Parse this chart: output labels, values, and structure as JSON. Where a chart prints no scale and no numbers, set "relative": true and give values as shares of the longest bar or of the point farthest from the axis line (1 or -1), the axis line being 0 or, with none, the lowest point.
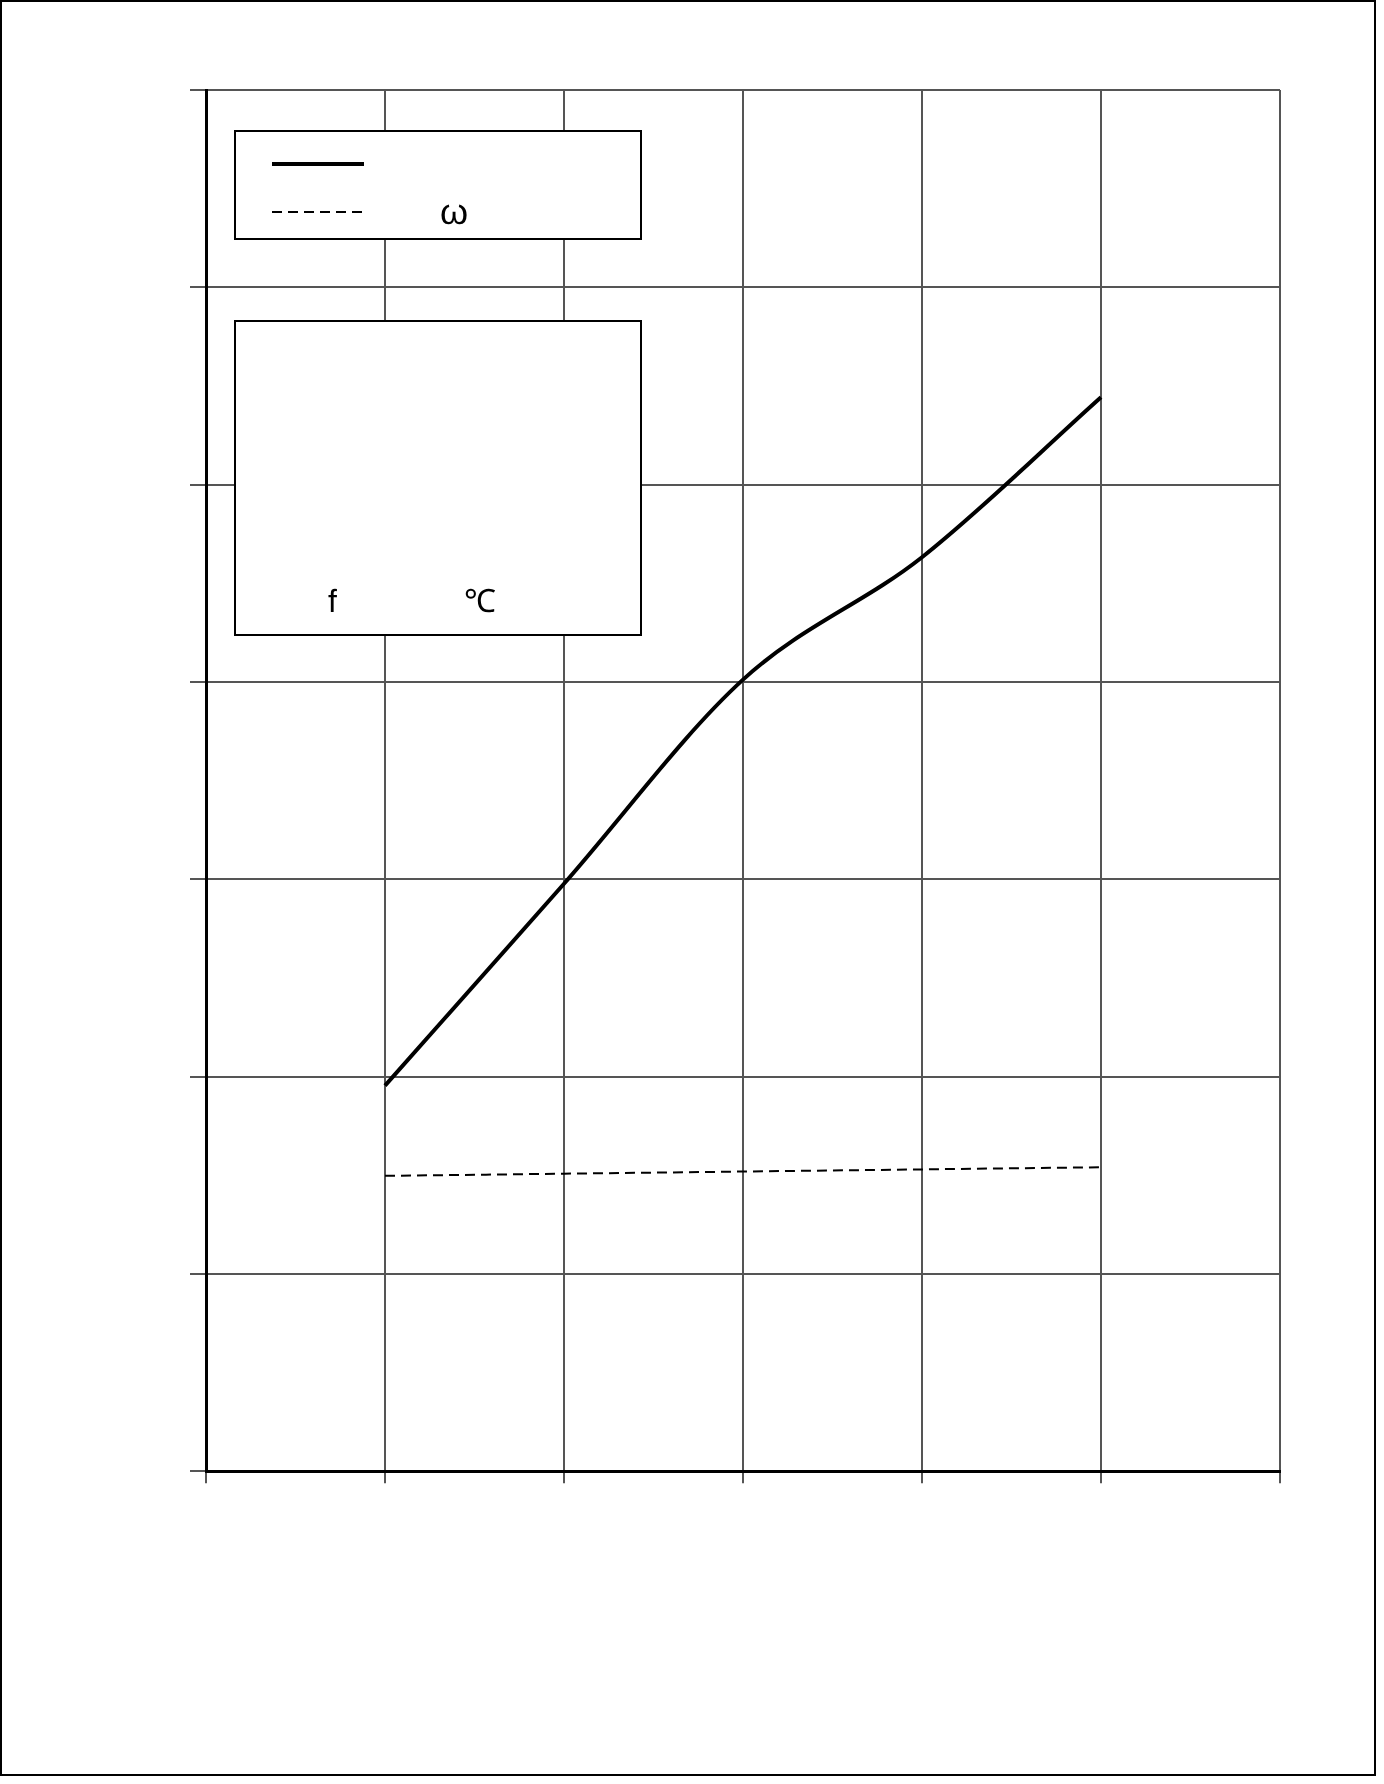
{
  "chart_data": {
    "type": "line",
    "relative": true,
    "categories": [
      null,
      null,
      null,
      null,
      null,
      null,
      null
    ],
    "grid": true,
    "legend": "top left",
    "marker": "none",
    "annotations": [
      "f",
      "℃"
    ],
    "series": [
      {
        "color": "#000000",
        "line_style": "solid",
        "values": [
          null,
          0.359,
          0.547,
          0.737,
          0.851,
          1,
          null
        ]
      },
      {
        "name": "ω",
        "color": "#000000",
        "line_style": "dashed",
        "values": [
          null,
          0.275,
          0.277,
          0.279,
          0.281,
          0.283,
          null
        ]
      }
    ]
  }
}
